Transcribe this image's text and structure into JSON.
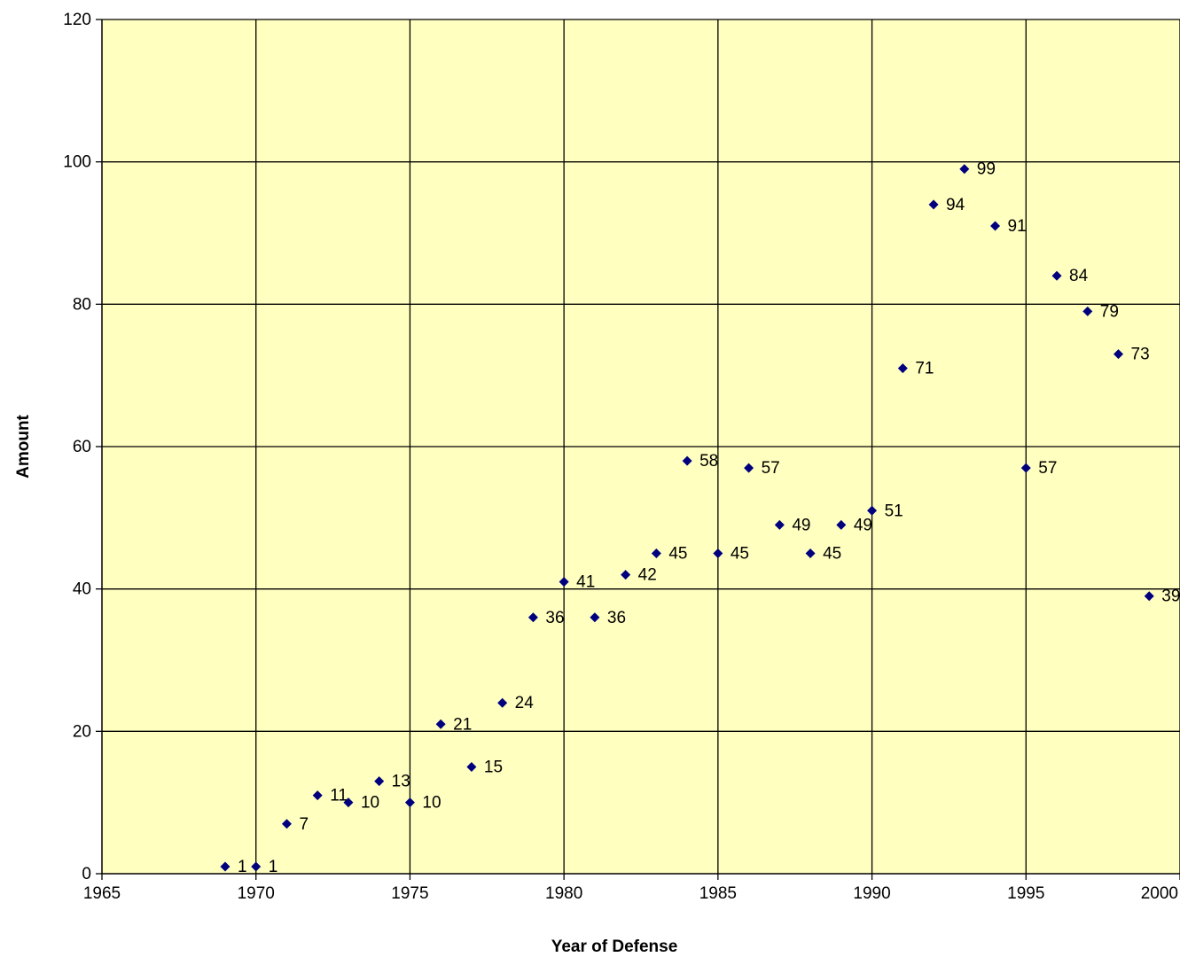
{
  "chart_data": {
    "type": "scatter",
    "title": "",
    "xlabel": "Year of Defense",
    "ylabel": "Amount",
    "xlim": [
      1965,
      2000
    ],
    "ylim": [
      0,
      120
    ],
    "x_ticks": [
      1965,
      1970,
      1975,
      1980,
      1985,
      1990,
      1995,
      2000
    ],
    "y_ticks": [
      0,
      20,
      40,
      60,
      80,
      100,
      120
    ],
    "grid": true,
    "legend": "none",
    "colors": {
      "plot_background": "#ffffc0",
      "marker": "#00007f",
      "grid": "#000000"
    },
    "marker": "diamond",
    "data_labels": true,
    "series": [
      {
        "x": [
          1969,
          1970,
          1971,
          1972,
          1973,
          1974,
          1975,
          1976,
          1977,
          1978,
          1979,
          1980,
          1981,
          1982,
          1983,
          1984,
          1985,
          1986,
          1987,
          1988,
          1989,
          1990,
          1991,
          1992,
          1993,
          1994,
          1995,
          1996,
          1997,
          1998,
          1999
        ],
        "y": [
          1,
          1,
          7,
          11,
          10,
          13,
          10,
          21,
          15,
          24,
          36,
          41,
          36,
          42,
          45,
          58,
          45,
          57,
          49,
          45,
          49,
          51,
          71,
          94,
          99,
          91,
          57,
          84,
          79,
          73,
          39
        ]
      }
    ]
  }
}
